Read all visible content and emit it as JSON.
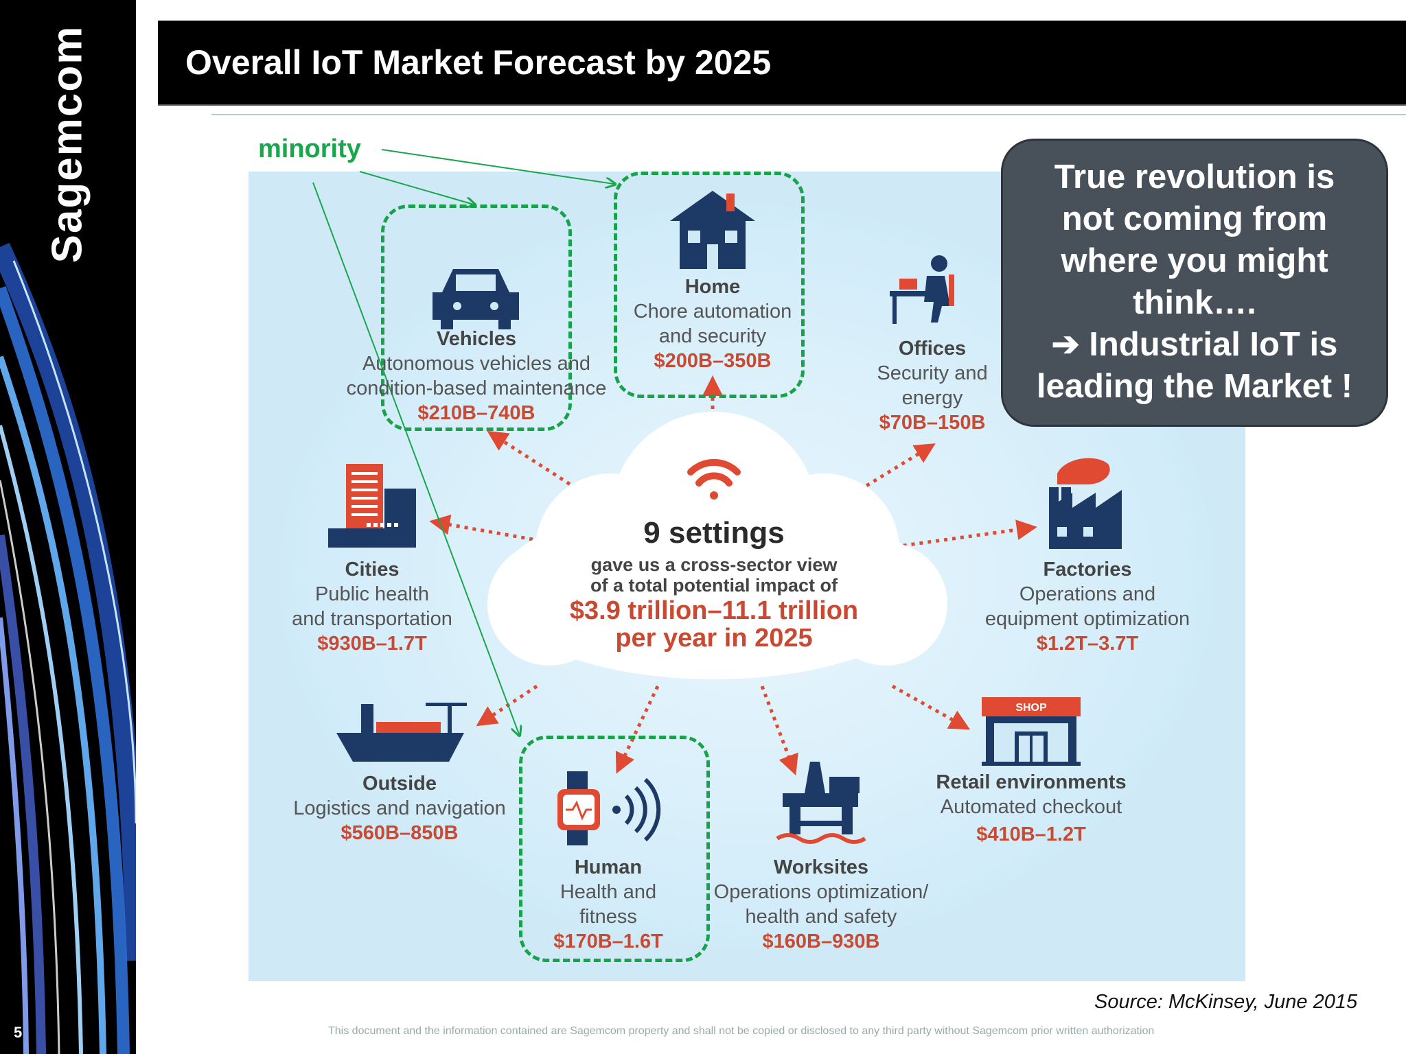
{
  "slide": {
    "title": "Overall IoT Market Forecast by 2025",
    "page_number": "5",
    "brand": "Sagemcom",
    "source": "Source: McKinsey, June 2015",
    "disclaimer": "This document and the information contained are Sagemcom property and shall not be copied or disclosed to any third party without Sagemcom prior written authorization"
  },
  "annotation": {
    "minority_label": "minority"
  },
  "callout": {
    "lines": [
      "True revolution is",
      "not coming from",
      "where you might",
      "think….",
      "➔ Industrial IoT is",
      "leading the Market !"
    ]
  },
  "center": {
    "title": "9 settings",
    "desc_line1": "gave us a cross-sector view",
    "desc_line2": "of a total potential impact of",
    "impact_line1": "$3.9 trillion–11.1 trillion",
    "impact_line2": "per year in 2025"
  },
  "settings": [
    {
      "name": "Vehicles",
      "lines": [
        "Autonomous vehicles and",
        "condition-based maintenance"
      ],
      "value": "$210B–740B",
      "icon": "car-icon",
      "highlight": true
    },
    {
      "name": "Home",
      "lines": [
        "Chore automation",
        "and security"
      ],
      "value": "$200B–350B",
      "icon": "house-icon",
      "highlight": true
    },
    {
      "name": "Offices",
      "lines": [
        "Security and",
        "energy"
      ],
      "value": "$70B–150B",
      "icon": "office-worker-icon",
      "highlight": false
    },
    {
      "name": "Cities",
      "lines": [
        "Public health",
        "and transportation"
      ],
      "value": "$930B–1.7T",
      "icon": "city-buildings-icon",
      "highlight": false
    },
    {
      "name": "Factories",
      "lines": [
        "Operations and",
        "equipment optimization"
      ],
      "value": "$1.2T–3.7T",
      "icon": "factory-icon",
      "highlight": false
    },
    {
      "name": "Outside",
      "lines": [
        "Logistics and navigation"
      ],
      "value": "$560B–850B",
      "icon": "cargo-ship-icon",
      "highlight": false
    },
    {
      "name": "Human",
      "lines": [
        "Health and",
        "fitness"
      ],
      "value": "$170B–1.6T",
      "icon": "smartwatch-icon",
      "highlight": true
    },
    {
      "name": "Worksites",
      "lines": [
        "Operations optimization/",
        "health and safety"
      ],
      "value": "$160B–930B",
      "icon": "oil-rig-icon",
      "highlight": false
    },
    {
      "name": "Retail environments",
      "lines": [
        "Automated checkout"
      ],
      "value": "$410B–1.2T",
      "icon": "shop-icon",
      "highlight": false
    }
  ],
  "icons": {
    "shop_sign": "SHOP"
  },
  "colors": {
    "navy": "#1d3a66",
    "red": "#c84a33",
    "green": "#18a34a",
    "callout_bg": "#48505a"
  }
}
